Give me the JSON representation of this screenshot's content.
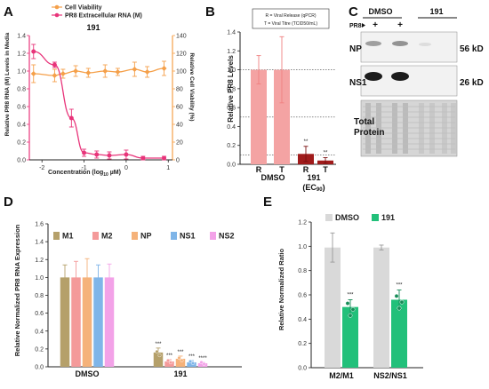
{
  "panels": {
    "A": {
      "letter": "A",
      "chart_data": {
        "type": "line",
        "title": "191",
        "xlabel": "Concentration (log10 µM)",
        "ylabel_left": "Relative PR8 RNA (M) Levels in Media",
        "ylabel_right": "Relative Cell Viability (%)",
        "xlim": [
          -2.3,
          1.1
        ],
        "ylim_left": [
          0,
          1.4
        ],
        "ylim_right": [
          0,
          140
        ],
        "xticks": [
          -2,
          -1,
          0,
          1
        ],
        "yticks_left": [
          0,
          0.2,
          0.4,
          0.6,
          0.8,
          1.0,
          1.2,
          1.4
        ],
        "yticks_right": [
          0,
          20,
          40,
          60,
          80,
          100,
          120,
          140
        ],
        "legend": "top-center",
        "series": [
          {
            "name": "Cell Viability",
            "color": "#f5a04a",
            "axis": "right",
            "x": [
              -2.2,
              -1.7,
              -1.5,
              -1.2,
              -0.9,
              -0.5,
              -0.2,
              0.2,
              0.5,
              0.9
            ],
            "y": [
              97,
              95,
              97,
              100,
              98,
              100,
              99,
              102,
              99,
              103
            ],
            "err": [
              10,
              7,
              5,
              6,
              5,
              7,
              4,
              8,
              6,
              8
            ]
          },
          {
            "name": "PR8 Extracellular RNA (M)",
            "color": "#e8347a",
            "axis": "left",
            "x": [
              -2.2,
              -1.7,
              -1.3,
              -1.0,
              -0.7,
              -0.4,
              0.0,
              0.4,
              0.9
            ],
            "y": [
              1.22,
              1.07,
              0.47,
              0.08,
              0.06,
              0.05,
              0.06,
              0.02,
              0.02
            ],
            "err": [
              0.08,
              0.03,
              0.1,
              0.04,
              0.04,
              0.04,
              0.05,
              0.02,
              0.02
            ]
          }
        ]
      }
    },
    "B": {
      "letter": "B",
      "chart_data": {
        "type": "bar",
        "ylabel": "Relative PR8 Levels",
        "ylim": [
          0,
          1.4
        ],
        "yticks": [
          0,
          0.2,
          0.4,
          0.6,
          0.8,
          1.0,
          1.2,
          1.4
        ],
        "legend_text": [
          "R = Viral Release (qPCR)",
          "T = Viral Titre (TCID50/mL)"
        ],
        "categories": [
          "R",
          "T",
          "R",
          "T"
        ],
        "groups": [
          "DMSO",
          "191 (EC90)"
        ],
        "values": [
          1.0,
          1.0,
          0.11,
          0.04
        ],
        "errors": [
          0.15,
          0.35,
          0.08,
          0.03
        ],
        "colors": [
          "#f4a3a3",
          "#f4a3a3",
          "#a01b1b",
          "#a01b1b"
        ],
        "significance": [
          "",
          "",
          "**",
          "**"
        ],
        "reference_lines": [
          1.0,
          0.5,
          0.1
        ]
      }
    },
    "C": {
      "letter": "C",
      "header_dmso": "DMSO",
      "header_191": "191",
      "pr8_label": "PR8",
      "plus": [
        "+",
        "+"
      ],
      "row_labels": [
        "NP",
        "NS1",
        "Total\nProtein"
      ],
      "row_label_np": "NP",
      "row_label_ns1": "NS1",
      "row_label_total_1": "Total",
      "row_label_total_2": "Protein",
      "kd_np": "56 kD",
      "kd_ns1": "26 kD"
    },
    "D": {
      "letter": "D",
      "chart_data": {
        "type": "bar",
        "ylabel": "Relative Normalized PR8 RNA Expression",
        "ylim": [
          0,
          1.6
        ],
        "yticks": [
          0,
          0.2,
          0.4,
          0.6,
          0.8,
          1.0,
          1.2,
          1.4,
          1.6
        ],
        "categories": [
          "DMSO",
          "191"
        ],
        "legend": "top-left",
        "series": [
          {
            "name": "M1",
            "color": "#b5a06a",
            "values": [
              1.0,
              0.16
            ],
            "errors": [
              0.14,
              0.05
            ],
            "sig": [
              "",
              "***"
            ]
          },
          {
            "name": "M2",
            "color": "#f49a9a",
            "values": [
              1.0,
              0.06
            ],
            "errors": [
              0.18,
              0.02
            ],
            "sig": [
              "",
              "***"
            ]
          },
          {
            "name": "NP",
            "color": "#f5b27a",
            "values": [
              1.0,
              0.09
            ],
            "errors": [
              0.21,
              0.03
            ],
            "sig": [
              "",
              "***"
            ]
          },
          {
            "name": "NS1",
            "color": "#7fb5e8",
            "values": [
              1.0,
              0.05
            ],
            "errors": [
              0.14,
              0.02
            ],
            "sig": [
              "",
              "***"
            ]
          },
          {
            "name": "NS2",
            "color": "#f3a2e8",
            "values": [
              1.0,
              0.04
            ],
            "errors": [
              0.15,
              0.01
            ],
            "sig": [
              "",
              "****"
            ]
          }
        ]
      }
    },
    "E": {
      "letter": "E",
      "chart_data": {
        "type": "bar",
        "ylabel": "Relative Normalized Ratio",
        "ylim": [
          0,
          1.2
        ],
        "yticks": [
          0,
          0.2,
          0.4,
          0.6,
          0.8,
          1.0,
          1.2
        ],
        "categories": [
          "M2/M1",
          "NS2/NS1"
        ],
        "legend": "top",
        "series": [
          {
            "name": "DMSO",
            "color": "#d9d9d9",
            "values": [
              0.99,
              0.99
            ],
            "errors": [
              0.12,
              0.02
            ],
            "sig": [
              "",
              ""
            ]
          },
          {
            "name": "191",
            "color": "#22c07a",
            "values": [
              0.5,
              0.56
            ],
            "errors": [
              0.06,
              0.08
            ],
            "sig": [
              "***",
              "***"
            ]
          }
        ]
      }
    }
  }
}
